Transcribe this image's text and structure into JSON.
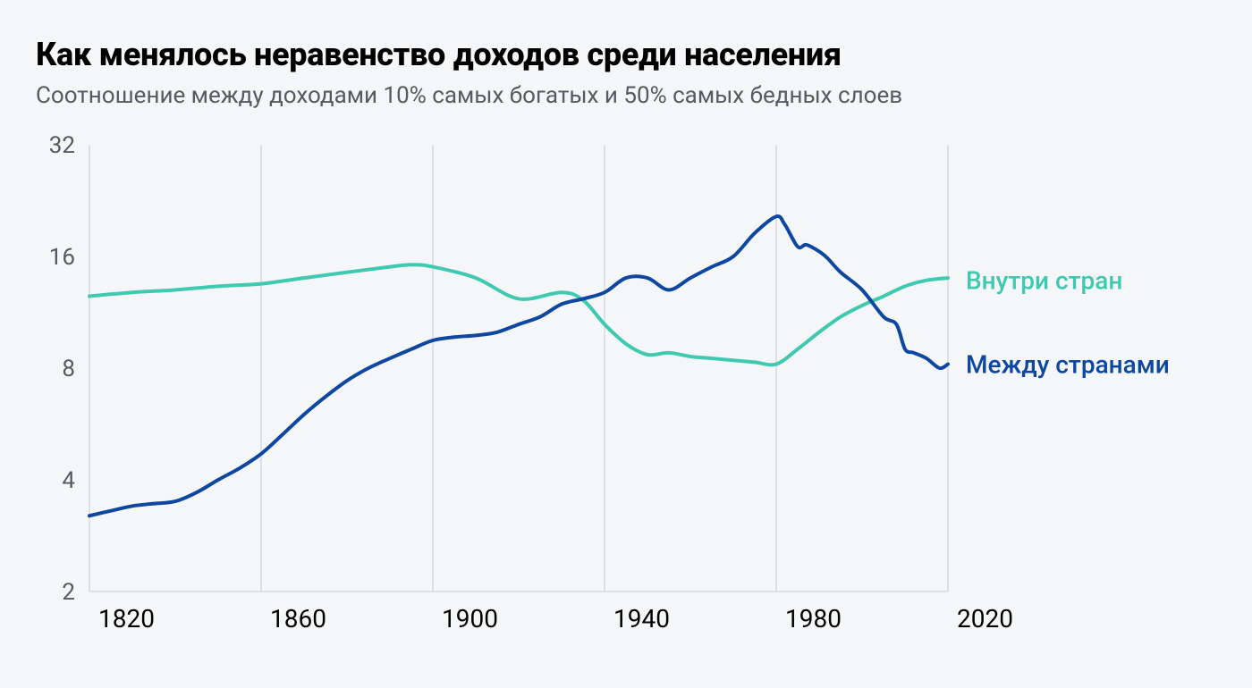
{
  "header": {
    "title": "Как менялось неравенство доходов среди населения",
    "subtitle": "Соотношение между доходами 10% самых богатых и 50% самых бедных слоев"
  },
  "chart": {
    "type": "line",
    "scale": "log2",
    "background_color": "#f5f6f7",
    "grid_color": "#c9cdd3",
    "text_color": "#555a63",
    "xaxis": {
      "min": 1820,
      "max": 2020,
      "ticks": [
        1820,
        1860,
        1900,
        1940,
        1980,
        2020
      ],
      "tick_fontsize": 28
    },
    "yaxis": {
      "ticks": [
        2,
        4,
        8,
        16,
        32
      ],
      "min": 2,
      "max": 32,
      "tick_fontsize": 26
    },
    "line_width": 4,
    "series": [
      {
        "id": "within",
        "label": "Внутри стран",
        "color": "#3fc9b0",
        "points": [
          [
            1820,
            12.5
          ],
          [
            1830,
            12.8
          ],
          [
            1840,
            13.0
          ],
          [
            1850,
            13.3
          ],
          [
            1860,
            13.5
          ],
          [
            1870,
            14.0
          ],
          [
            1880,
            14.5
          ],
          [
            1890,
            15.0
          ],
          [
            1895,
            15.2
          ],
          [
            1900,
            15.0
          ],
          [
            1910,
            14.0
          ],
          [
            1920,
            12.3
          ],
          [
            1930,
            12.8
          ],
          [
            1935,
            12.2
          ],
          [
            1940,
            10.5
          ],
          [
            1945,
            9.3
          ],
          [
            1950,
            8.7
          ],
          [
            1955,
            8.8
          ],
          [
            1960,
            8.6
          ],
          [
            1965,
            8.5
          ],
          [
            1970,
            8.4
          ],
          [
            1975,
            8.3
          ],
          [
            1980,
            8.2
          ],
          [
            1985,
            9.0
          ],
          [
            1990,
            10.0
          ],
          [
            1995,
            11.0
          ],
          [
            2000,
            11.8
          ],
          [
            2005,
            12.5
          ],
          [
            2010,
            13.3
          ],
          [
            2015,
            13.8
          ],
          [
            2020,
            14.0
          ]
        ]
      },
      {
        "id": "between",
        "label": "Между странами",
        "color": "#0d47a1",
        "points": [
          [
            1820,
            3.2
          ],
          [
            1825,
            3.3
          ],
          [
            1830,
            3.4
          ],
          [
            1835,
            3.45
          ],
          [
            1840,
            3.5
          ],
          [
            1845,
            3.7
          ],
          [
            1850,
            4.0
          ],
          [
            1855,
            4.3
          ],
          [
            1860,
            4.7
          ],
          [
            1865,
            5.3
          ],
          [
            1870,
            6.0
          ],
          [
            1875,
            6.7
          ],
          [
            1880,
            7.4
          ],
          [
            1885,
            8.0
          ],
          [
            1890,
            8.5
          ],
          [
            1895,
            9.0
          ],
          [
            1900,
            9.5
          ],
          [
            1905,
            9.7
          ],
          [
            1910,
            9.8
          ],
          [
            1915,
            10.0
          ],
          [
            1920,
            10.5
          ],
          [
            1925,
            11.0
          ],
          [
            1930,
            11.9
          ],
          [
            1935,
            12.3
          ],
          [
            1940,
            12.8
          ],
          [
            1945,
            14.0
          ],
          [
            1950,
            14.0
          ],
          [
            1955,
            13.0
          ],
          [
            1960,
            14.0
          ],
          [
            1965,
            15.0
          ],
          [
            1970,
            16.0
          ],
          [
            1975,
            18.5
          ],
          [
            1980,
            20.5
          ],
          [
            1982,
            19.5
          ],
          [
            1985,
            17.0
          ],
          [
            1987,
            17.2
          ],
          [
            1990,
            16.5
          ],
          [
            1992,
            15.8
          ],
          [
            1995,
            14.5
          ],
          [
            2000,
            13.0
          ],
          [
            2005,
            11.0
          ],
          [
            2008,
            10.5
          ],
          [
            2010,
            9.0
          ],
          [
            2012,
            8.8
          ],
          [
            2015,
            8.5
          ],
          [
            2018,
            8.0
          ],
          [
            2020,
            8.2
          ]
        ]
      }
    ],
    "series_labels": {
      "within": {
        "text": "Внутри стран",
        "x": 2022,
        "y": 13.8
      },
      "between": {
        "text": "Между странами",
        "x": 2022,
        "y": 8.2
      }
    }
  }
}
